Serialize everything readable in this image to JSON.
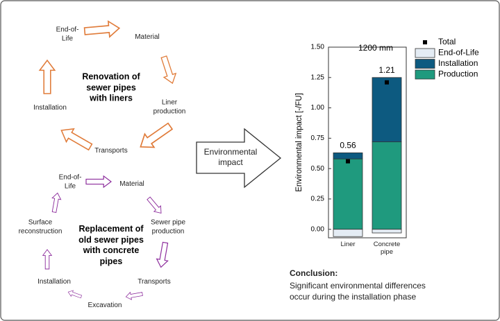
{
  "process_diagrams": [
    {
      "title": "Renovation of\nsewer pipes\nwith liners",
      "steps": [
        "End-of-\nLife",
        "Material",
        "Liner\nproduction",
        "Transports",
        "Installation"
      ]
    },
    {
      "title": "Replacement of\nold sewer pipes\nwith concrete\npipes",
      "steps": [
        "End-of-\nLife",
        "Material",
        "Sewer pipe\nproduction",
        "Transports",
        "Excavation",
        "Installation",
        "Surface\nreconstruction"
      ]
    }
  ],
  "arrow_label": "Environmental\nimpact",
  "conclusion": {
    "title": "Conclusion:",
    "text": "Significant environmental differences\noccur during the installation phase"
  },
  "chart_data": {
    "type": "bar",
    "stacked": true,
    "annotation": "1200 mm",
    "y_label": "Environmental impact [-/FU]",
    "categories": [
      "Liner",
      "Concrete pipe"
    ],
    "series": [
      {
        "name": "Total",
        "color": "#000000",
        "marker": "square",
        "values": [
          0.56,
          1.21
        ]
      },
      {
        "name": "End-of-Life",
        "color": "#e4ecf4",
        "values": [
          -0.06,
          -0.03
        ]
      },
      {
        "name": "Installation",
        "color": "#0d5a80",
        "values": [
          0.05,
          0.53
        ]
      },
      {
        "name": "Production",
        "color": "#1f9a7e",
        "values": [
          0.58,
          0.72
        ]
      }
    ],
    "ylim": [
      -0.07,
      1.5
    ],
    "yticks": [
      {
        "value": 0,
        "label": "0.00"
      },
      {
        "value": 0.25,
        "label": "0.25"
      },
      {
        "value": 0.5,
        "label": "0.50"
      },
      {
        "value": 0.75,
        "label": "0.75"
      },
      {
        "value": 1,
        "label": "1.00"
      },
      {
        "value": 1.25,
        "label": "1.25"
      },
      {
        "value": 1.5,
        "label": "1.50"
      }
    ],
    "legend": "upper right"
  }
}
